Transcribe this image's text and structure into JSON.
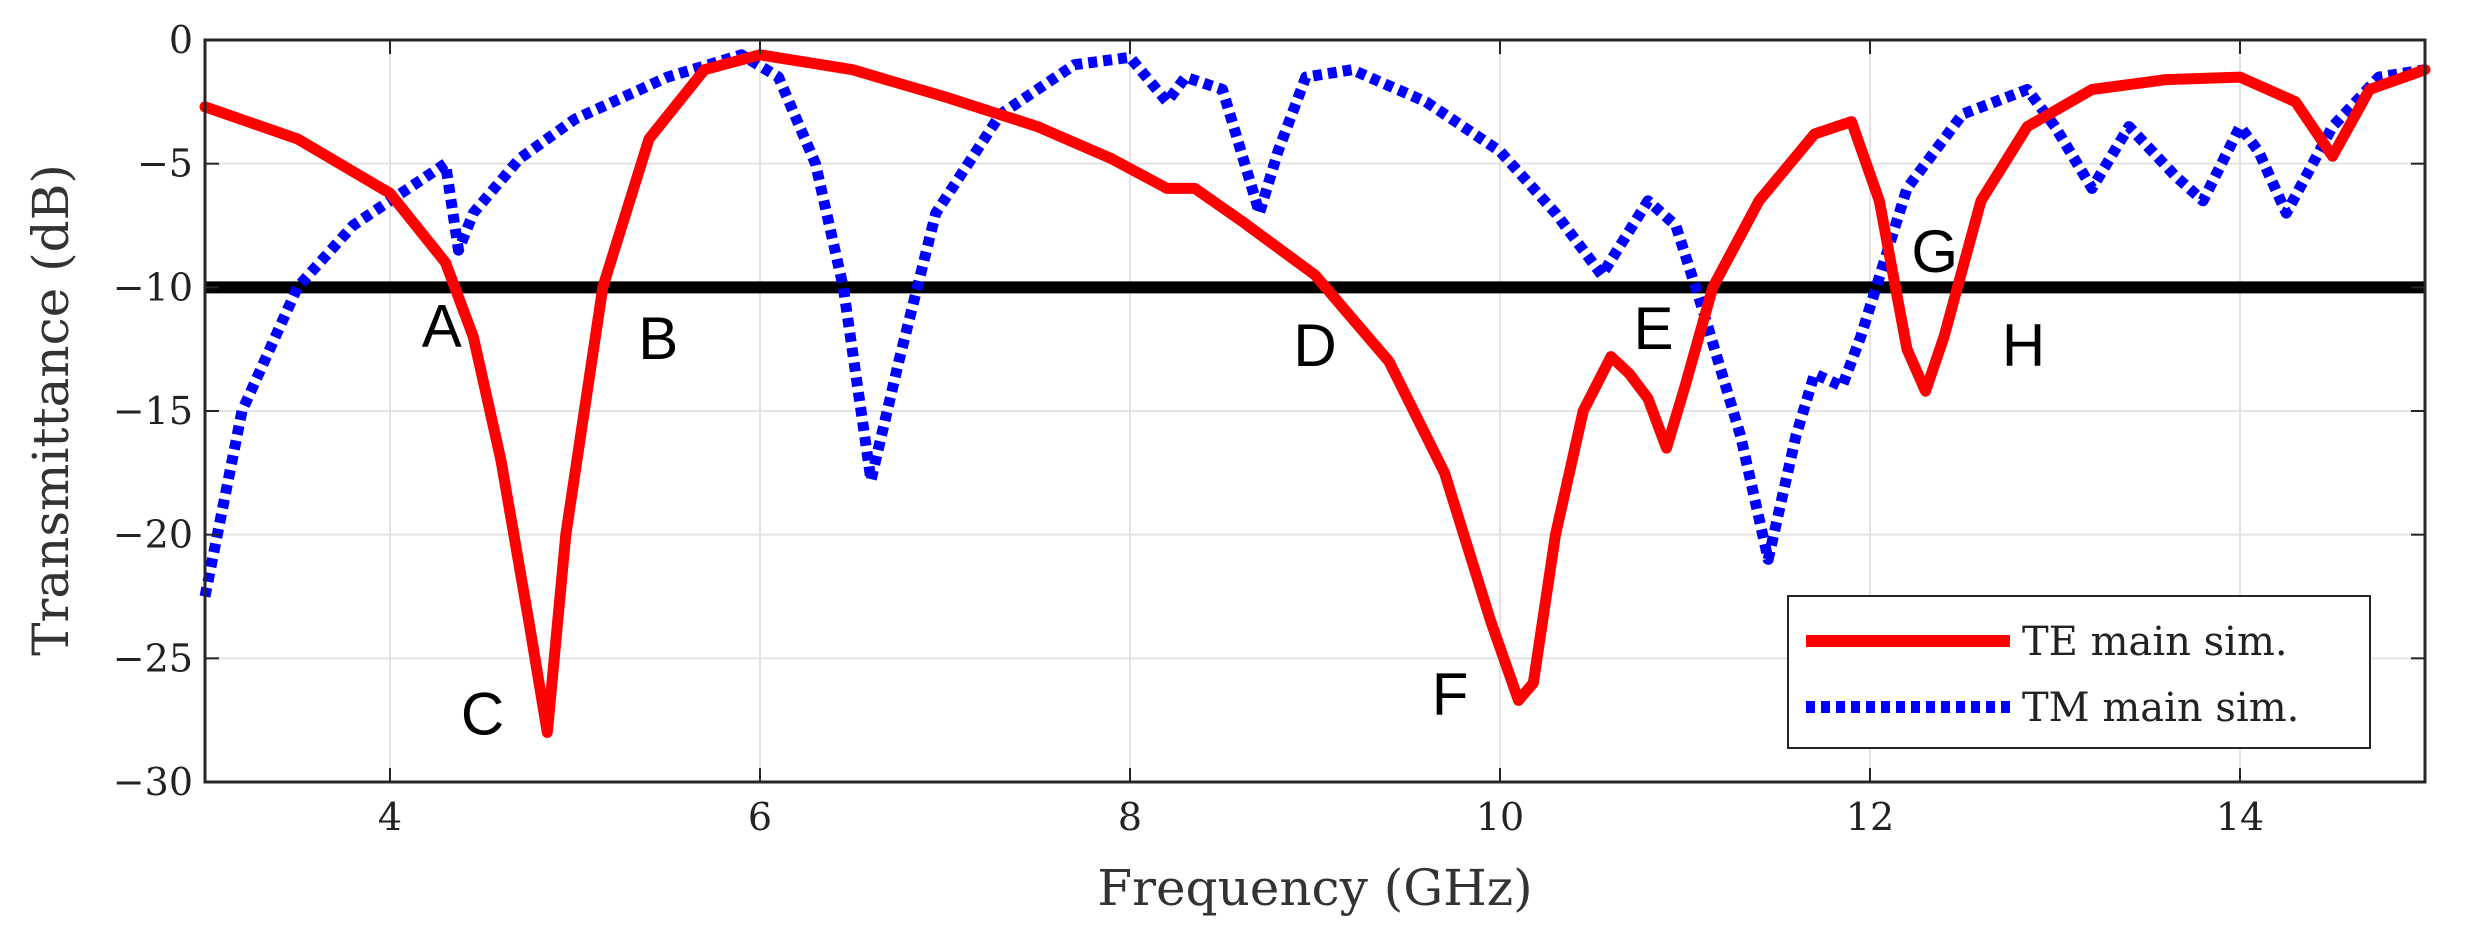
{
  "chart_data": {
    "type": "line",
    "title": "",
    "xlabel": "Frequency (GHz)",
    "ylabel": "Transmittance (dB)",
    "xlim": [
      3,
      15
    ],
    "ylim": [
      -30,
      0
    ],
    "xticks": [
      4,
      6,
      8,
      10,
      12,
      14
    ],
    "yticks": [
      0,
      -5,
      -10,
      -15,
      -20,
      -25,
      -30
    ],
    "grid": true,
    "legend_position": "bottom-right",
    "threshold": {
      "y": -10,
      "color": "#000000"
    },
    "series": [
      {
        "name": "TE main sim.",
        "color": "#ff0000",
        "style": "solid",
        "x": [
          3.0,
          3.5,
          4.0,
          4.3,
          4.45,
          4.6,
          4.75,
          4.85,
          4.95,
          5.15,
          5.4,
          5.7,
          6.0,
          6.5,
          7.0,
          7.5,
          7.9,
          8.2,
          8.35,
          8.6,
          9.0,
          9.4,
          9.7,
          9.95,
          10.1,
          10.18,
          10.3,
          10.45,
          10.6,
          10.7,
          10.8,
          10.9,
          11.0,
          11.15,
          11.4,
          11.7,
          11.9,
          12.05,
          12.2,
          12.3,
          12.4,
          12.6,
          12.85,
          13.2,
          13.6,
          14.0,
          14.3,
          14.5,
          14.7,
          15.0
        ],
        "y": [
          -2.7,
          -4.0,
          -6.2,
          -9.0,
          -12.0,
          -17.0,
          -23.5,
          -28.0,
          -20.0,
          -10.0,
          -4.0,
          -1.2,
          -0.6,
          -1.2,
          -2.3,
          -3.5,
          -4.8,
          -6.0,
          -6.0,
          -7.3,
          -9.5,
          -13.0,
          -17.5,
          -23.5,
          -26.7,
          -26.0,
          -20.0,
          -15.0,
          -12.8,
          -13.5,
          -14.5,
          -16.5,
          -14.0,
          -10.0,
          -6.5,
          -3.8,
          -3.3,
          -6.5,
          -12.5,
          -14.2,
          -12.0,
          -6.5,
          -3.5,
          -2.0,
          -1.6,
          -1.5,
          -2.5,
          -4.7,
          -2.0,
          -1.2
        ]
      },
      {
        "name": "TM main sim.",
        "color": "#0000ff",
        "style": "dotted",
        "x": [
          3.0,
          3.2,
          3.5,
          3.8,
          4.1,
          4.3,
          4.37,
          4.45,
          4.7,
          5.0,
          5.5,
          5.9,
          6.1,
          6.3,
          6.45,
          6.6,
          6.75,
          6.95,
          7.3,
          7.7,
          8.0,
          8.2,
          8.3,
          8.5,
          8.7,
          8.8,
          8.95,
          9.2,
          9.6,
          10.0,
          10.3,
          10.55,
          10.8,
          10.95,
          11.1,
          11.3,
          11.45,
          11.6,
          11.7,
          11.85,
          11.95,
          12.2,
          12.5,
          12.85,
          13.0,
          13.2,
          13.4,
          13.65,
          13.8,
          14.0,
          14.1,
          14.25,
          14.5,
          14.75,
          15.0
        ],
        "y": [
          -22.5,
          -15.0,
          -10.0,
          -7.5,
          -6.0,
          -5.0,
          -8.5,
          -7.0,
          -4.8,
          -3.2,
          -1.5,
          -0.6,
          -1.5,
          -5.0,
          -10.0,
          -17.8,
          -13.0,
          -7.0,
          -3.0,
          -1.0,
          -0.7,
          -2.5,
          -1.5,
          -2.0,
          -7.0,
          -4.5,
          -1.5,
          -1.2,
          -2.5,
          -4.5,
          -7.0,
          -9.5,
          -6.5,
          -7.5,
          -11.0,
          -16.0,
          -21.0,
          -16.0,
          -13.5,
          -14.0,
          -12.0,
          -6.0,
          -3.0,
          -2.0,
          -3.5,
          -6.0,
          -3.5,
          -5.5,
          -6.5,
          -3.5,
          -4.5,
          -7.0,
          -3.5,
          -1.5,
          -1.2
        ]
      }
    ],
    "annotations": [
      {
        "text": "A",
        "x": 4.28,
        "y": -11.5
      },
      {
        "text": "B",
        "x": 5.45,
        "y": -12.0
      },
      {
        "text": "C",
        "x": 4.5,
        "y": -27.2
      },
      {
        "text": "D",
        "x": 9.0,
        "y": -12.3
      },
      {
        "text": "E",
        "x": 10.83,
        "y": -11.6
      },
      {
        "text": "F",
        "x": 9.73,
        "y": -26.4
      },
      {
        "text": "G",
        "x": 12.35,
        "y": -8.5
      },
      {
        "text": "H",
        "x": 12.83,
        "y": -12.3
      }
    ]
  }
}
